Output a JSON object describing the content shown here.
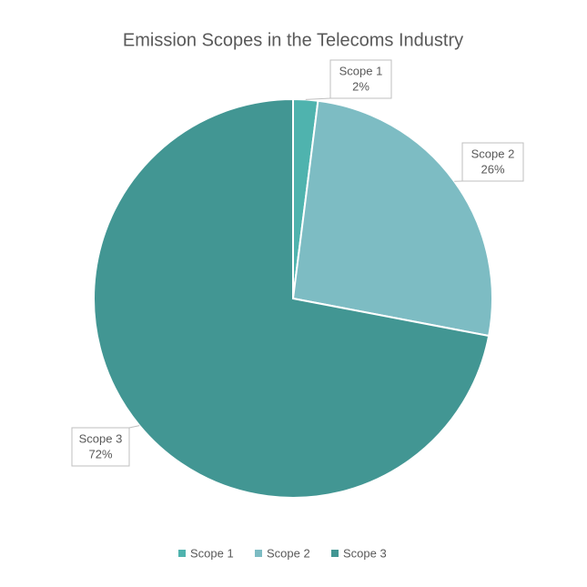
{
  "chart_data": {
    "type": "pie",
    "title": "Emission Scopes in the Telecoms Industry",
    "categories": [
      "Scope 1",
      "Scope 2",
      "Scope 3"
    ],
    "values": [
      2,
      26,
      72
    ],
    "value_labels": [
      "2%",
      "26%",
      "72%"
    ],
    "colors": [
      "#4fb3ae",
      "#7dbcc3",
      "#429693"
    ],
    "legend": "bottom"
  }
}
